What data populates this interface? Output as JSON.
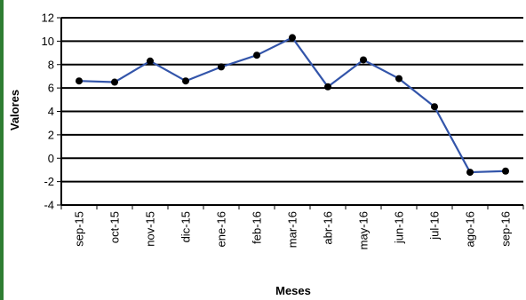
{
  "chart_data": {
    "type": "line",
    "title": "",
    "xlabel": "Meses",
    "ylabel": "Valores",
    "categories": [
      "sep-15",
      "oct-15",
      "nov-15",
      "dic-15",
      "ene-16",
      "feb-16",
      "mar-16",
      "abr-16",
      "may-16",
      "jun-16",
      "jul-16",
      "ago-16",
      "sep-16"
    ],
    "series": [
      {
        "values": [
          6.6,
          6.5,
          8.3,
          6.6,
          7.8,
          8.8,
          10.3,
          6.1,
          8.4,
          6.8,
          4.4,
          -1.2,
          -1.1
        ]
      }
    ],
    "ylim": [
      -4,
      12
    ],
    "yticks": [
      -4,
      -2,
      0,
      2,
      4,
      6,
      8,
      10,
      12
    ],
    "grid": true,
    "legend": "none"
  },
  "colors": {
    "line": "#3355aa",
    "marker": "#000000",
    "grid": "#000000",
    "border": "#2e7d32"
  }
}
